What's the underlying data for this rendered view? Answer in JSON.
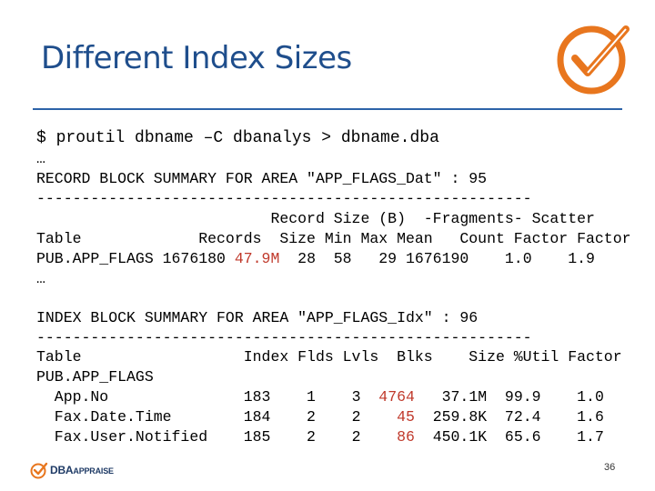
{
  "slide": {
    "title": "Different Index Sizes",
    "page_number": "36",
    "brand": {
      "name_bold": "DBA",
      "name_small": "APPRAISE",
      "accent_color": "#e8761e",
      "title_color": "#1f4e8c"
    }
  },
  "terminal": {
    "command": "$ proutil dbname –C dbanalys > dbname.dba",
    "ellipsis": "…",
    "record_summary_title": "RECORD BLOCK SUMMARY FOR AREA \"APP_FLAGS_Dat\" : 95",
    "separator": "-------------------------------------------------------",
    "record_header1": "                          Record Size (B)  -Fragments- Scatter",
    "record_header2": "Table             Records  Size Min Max Mean   Count Factor Factor",
    "record_row_prefix": "PUB.APP_FLAGS 1676180 ",
    "record_row_size": "47.9M",
    "record_row_suffix": "  28  58   29 1676190    1.0    1.9",
    "index_summary_title": "INDEX BLOCK SUMMARY FOR AREA \"APP_FLAGS_Idx\" : 96",
    "index_header": "Table                  Index Flds Lvls  Blks    Size %Util Factor",
    "index_table_name": "PUB.APP_FLAGS",
    "index_rows": [
      {
        "name": "  App.No              ",
        "index": " 183",
        "flds": "    1",
        "lvls": "    3",
        "blks": "  4764",
        "size": "   37.1M",
        "util": "  99.9",
        "factor": "    1.0"
      },
      {
        "name": "  Fax.Date.Time       ",
        "index": " 184",
        "flds": "    2",
        "lvls": "    2",
        "blks": "    45",
        "size": "  259.8K",
        "util": "  72.4",
        "factor": "    1.6"
      },
      {
        "name": "  Fax.User.Notified   ",
        "index": " 185",
        "flds": "    2",
        "lvls": "    2",
        "blks": "    86",
        "size": "  450.1K",
        "util": "  65.6",
        "factor": "    1.7"
      }
    ]
  }
}
